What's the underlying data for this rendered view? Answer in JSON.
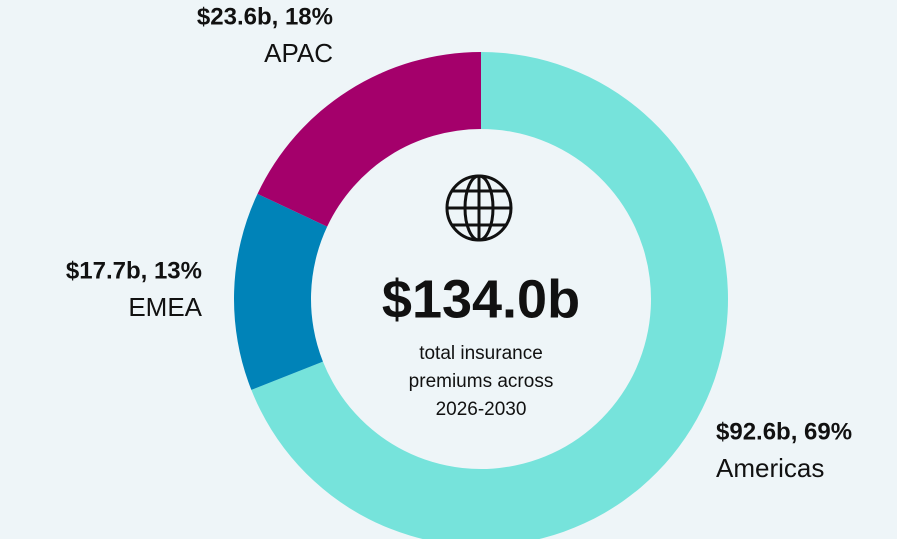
{
  "chart_data": {
    "type": "pie",
    "donut": true,
    "categories": [
      "Americas",
      "EMEA",
      "APAC"
    ],
    "values": [
      69,
      13,
      18
    ],
    "value_labels": [
      "$92.6b, 69%",
      "$17.7b, 13%",
      "$23.6b, 18%"
    ],
    "colors": [
      "#76e3db",
      "#0083b8",
      "#a4006b"
    ],
    "center_value": "$134.0b",
    "center_text": [
      "total insurance",
      "premiums across",
      "2026-2030"
    ]
  }
}
